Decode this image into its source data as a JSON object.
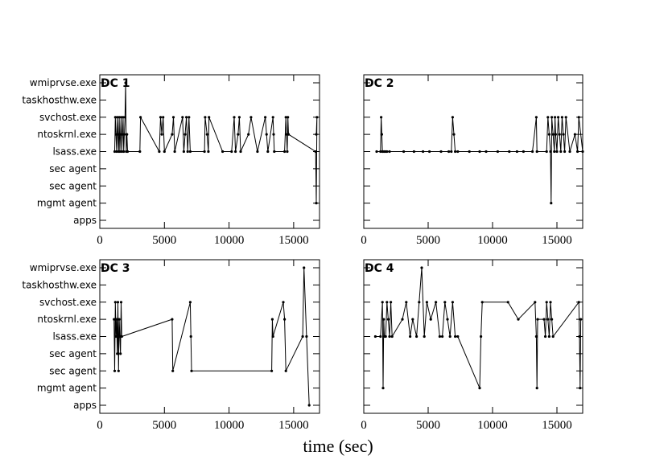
{
  "chart_data": {
    "type": "line",
    "xlabel": "time (sec)",
    "xlim": [
      0,
      17000
    ],
    "xticks": [
      0,
      5000,
      10000,
      15000
    ],
    "categories": [
      "apps",
      "mgmt agent",
      "sec agent",
      "sec agent",
      "lsass.exe",
      "ntoskrnl.exe",
      "svchost.exe",
      "taskhosthw.exe",
      "wmiprvse.exe"
    ],
    "panels": [
      {
        "title": "DC 1",
        "points": [
          [
            1150,
            4
          ],
          [
            1200,
            6
          ],
          [
            1250,
            5
          ],
          [
            1300,
            4
          ],
          [
            1350,
            6
          ],
          [
            1400,
            5
          ],
          [
            1450,
            4
          ],
          [
            1500,
            6
          ],
          [
            1550,
            4
          ],
          [
            1600,
            5
          ],
          [
            1650,
            6
          ],
          [
            1700,
            4
          ],
          [
            1750,
            5
          ],
          [
            1800,
            6
          ],
          [
            1850,
            4
          ],
          [
            1900,
            5
          ],
          [
            1950,
            6
          ],
          [
            2000,
            8
          ],
          [
            2050,
            4
          ],
          [
            2100,
            5
          ],
          [
            2150,
            4
          ],
          [
            3100,
            4
          ],
          [
            3150,
            6
          ],
          [
            4600,
            4
          ],
          [
            4700,
            6
          ],
          [
            4800,
            5
          ],
          [
            4900,
            6
          ],
          [
            5000,
            4
          ],
          [
            5600,
            5
          ],
          [
            5700,
            6
          ],
          [
            5800,
            4
          ],
          [
            6400,
            6
          ],
          [
            6500,
            4
          ],
          [
            6600,
            5
          ],
          [
            6700,
            6
          ],
          [
            6800,
            4
          ],
          [
            6900,
            6
          ],
          [
            7000,
            4
          ],
          [
            8100,
            4
          ],
          [
            8150,
            6
          ],
          [
            8300,
            5
          ],
          [
            8400,
            4
          ],
          [
            8450,
            6
          ],
          [
            9500,
            4
          ],
          [
            10200,
            4
          ],
          [
            10400,
            6
          ],
          [
            10500,
            4
          ],
          [
            10700,
            5
          ],
          [
            10800,
            6
          ],
          [
            10900,
            4
          ],
          [
            11500,
            5
          ],
          [
            11700,
            6
          ],
          [
            12200,
            4
          ],
          [
            12800,
            6
          ],
          [
            12900,
            5
          ],
          [
            13000,
            4
          ],
          [
            13400,
            6
          ],
          [
            13450,
            5
          ],
          [
            13500,
            4
          ],
          [
            14300,
            4
          ],
          [
            14400,
            6
          ],
          [
            14450,
            5
          ],
          [
            14500,
            4
          ],
          [
            14550,
            6
          ],
          [
            14600,
            5
          ],
          [
            16700,
            4
          ],
          [
            16750,
            1
          ],
          [
            16800,
            6
          ],
          [
            16750,
            5
          ]
        ]
      },
      {
        "title": "DC 2",
        "points": [
          [
            1000,
            4
          ],
          [
            1300,
            4
          ],
          [
            1350,
            6
          ],
          [
            1400,
            5
          ],
          [
            1450,
            4
          ],
          [
            1500,
            4
          ],
          [
            1600,
            4
          ],
          [
            1700,
            4
          ],
          [
            1800,
            4
          ],
          [
            2000,
            4
          ],
          [
            3100,
            4
          ],
          [
            3900,
            4
          ],
          [
            4600,
            4
          ],
          [
            5100,
            4
          ],
          [
            6000,
            4
          ],
          [
            6600,
            4
          ],
          [
            6800,
            4
          ],
          [
            6900,
            6
          ],
          [
            7000,
            5
          ],
          [
            7100,
            4
          ],
          [
            7300,
            4
          ],
          [
            8200,
            4
          ],
          [
            9000,
            4
          ],
          [
            9500,
            4
          ],
          [
            10400,
            4
          ],
          [
            11300,
            4
          ],
          [
            11900,
            4
          ],
          [
            12400,
            4
          ],
          [
            13100,
            4
          ],
          [
            13400,
            6
          ],
          [
            13450,
            4
          ],
          [
            14200,
            4
          ],
          [
            14300,
            6
          ],
          [
            14400,
            5
          ],
          [
            14500,
            4
          ],
          [
            14550,
            1
          ],
          [
            14600,
            6
          ],
          [
            14700,
            5
          ],
          [
            14800,
            4
          ],
          [
            14850,
            6
          ],
          [
            14900,
            5
          ],
          [
            15000,
            4
          ],
          [
            15100,
            6
          ],
          [
            15200,
            5
          ],
          [
            15300,
            4
          ],
          [
            15400,
            6
          ],
          [
            15500,
            5
          ],
          [
            15600,
            4
          ],
          [
            15700,
            6
          ],
          [
            16000,
            4
          ],
          [
            16400,
            5
          ],
          [
            16600,
            4
          ],
          [
            16700,
            6
          ],
          [
            17000,
            4
          ]
        ]
      },
      {
        "title": "DC 3",
        "points": [
          [
            1100,
            5
          ],
          [
            1150,
            2
          ],
          [
            1200,
            6
          ],
          [
            1250,
            4
          ],
          [
            1300,
            5
          ],
          [
            1350,
            3
          ],
          [
            1400,
            6
          ],
          [
            1450,
            2
          ],
          [
            1500,
            5
          ],
          [
            1550,
            4
          ],
          [
            1600,
            3
          ],
          [
            1650,
            6
          ],
          [
            1700,
            4
          ],
          [
            5600,
            5
          ],
          [
            5650,
            2
          ],
          [
            7000,
            6
          ],
          [
            7050,
            4
          ],
          [
            7100,
            2
          ],
          [
            13300,
            2
          ],
          [
            13350,
            5
          ],
          [
            13400,
            4
          ],
          [
            14200,
            6
          ],
          [
            14300,
            5
          ],
          [
            14400,
            2
          ],
          [
            15700,
            4
          ],
          [
            15800,
            8
          ],
          [
            16000,
            4
          ],
          [
            16200,
            0
          ]
        ]
      },
      {
        "title": "DC 4",
        "points": [
          [
            900,
            4
          ],
          [
            1300,
            4
          ],
          [
            1450,
            6
          ],
          [
            1500,
            1
          ],
          [
            1550,
            5
          ],
          [
            1600,
            4
          ],
          [
            1700,
            4
          ],
          [
            1800,
            6
          ],
          [
            1900,
            5
          ],
          [
            2000,
            4
          ],
          [
            2100,
            6
          ],
          [
            2200,
            4
          ],
          [
            3000,
            5
          ],
          [
            3300,
            6
          ],
          [
            3600,
            4
          ],
          [
            3800,
            5
          ],
          [
            4100,
            4
          ],
          [
            4300,
            6
          ],
          [
            4500,
            8
          ],
          [
            4700,
            4
          ],
          [
            4900,
            6
          ],
          [
            5200,
            5
          ],
          [
            5600,
            6
          ],
          [
            5900,
            4
          ],
          [
            6100,
            4
          ],
          [
            6300,
            6
          ],
          [
            6500,
            5
          ],
          [
            6700,
            4
          ],
          [
            6900,
            6
          ],
          [
            7100,
            4
          ],
          [
            7300,
            4
          ],
          [
            9000,
            1
          ],
          [
            9100,
            4
          ],
          [
            9200,
            6
          ],
          [
            11200,
            6
          ],
          [
            12000,
            5
          ],
          [
            13300,
            6
          ],
          [
            13400,
            4
          ],
          [
            13450,
            1
          ],
          [
            13500,
            5
          ],
          [
            14000,
            5
          ],
          [
            14100,
            4
          ],
          [
            14200,
            6
          ],
          [
            14300,
            5
          ],
          [
            14400,
            4
          ],
          [
            14500,
            6
          ],
          [
            14600,
            5
          ],
          [
            14700,
            4
          ],
          [
            16700,
            6
          ],
          [
            16750,
            4
          ],
          [
            16800,
            1
          ],
          [
            16850,
            5
          ]
        ]
      }
    ]
  }
}
